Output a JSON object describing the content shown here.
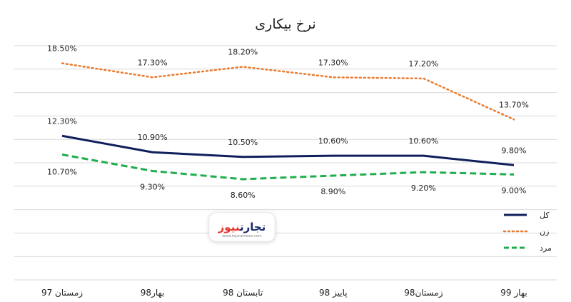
{
  "chart_data": {
    "type": "line",
    "title": "نرخ بیکاری",
    "categories": [
      "زمستان 97",
      "بهار98",
      "تابستان 98",
      "پاییز 98",
      "زمستان98",
      "بهار 99"
    ],
    "series": [
      {
        "name": "کل",
        "values": [
          12.3,
          10.9,
          10.5,
          10.6,
          10.6,
          9.8
        ],
        "color": "#0f1f5c",
        "style": "solid",
        "labels": [
          "12.30%",
          "10.90%",
          "10.50%",
          "10.60%",
          "10.60%",
          "9.80%"
        ]
      },
      {
        "name": "زن",
        "values": [
          18.5,
          17.3,
          18.2,
          17.3,
          17.2,
          13.7
        ],
        "color": "#ec7a2e",
        "style": "dotted",
        "labels": [
          "18.50%",
          "17.30%",
          "18.20%",
          "17.30%",
          "17.20%",
          "13.70%"
        ]
      },
      {
        "name": "مرد",
        "values": [
          10.7,
          9.3,
          8.6,
          8.9,
          9.2,
          9.0
        ],
        "color": "#1fae4e",
        "style": "dashed",
        "labels": [
          "10.70%",
          "9.30%",
          "8.60%",
          "8.90%",
          "9.20%",
          "9.00%"
        ]
      }
    ],
    "ylim": [
      0,
      20
    ],
    "grid": true,
    "legend": "right"
  },
  "watermark": {
    "brand_part1": "تجارت",
    "brand_part2": "نیوز",
    "url": "www.tejaratnews.com"
  }
}
